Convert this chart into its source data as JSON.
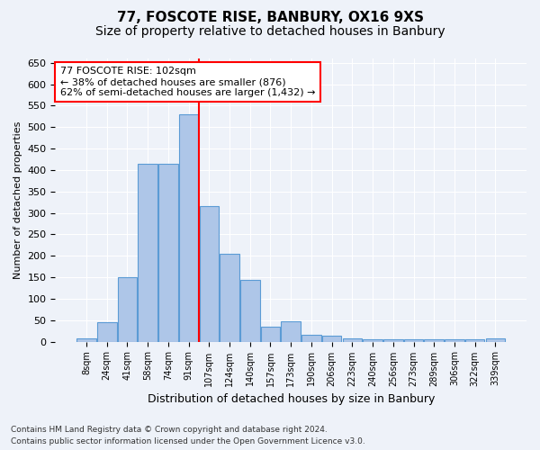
{
  "title1": "77, FOSCOTE RISE, BANBURY, OX16 9XS",
  "title2": "Size of property relative to detached houses in Banbury",
  "xlabel": "Distribution of detached houses by size in Banbury",
  "ylabel": "Number of detached properties",
  "categories": [
    "8sqm",
    "24sqm",
    "41sqm",
    "58sqm",
    "74sqm",
    "91sqm",
    "107sqm",
    "124sqm",
    "140sqm",
    "157sqm",
    "173sqm",
    "190sqm",
    "206sqm",
    "223sqm",
    "240sqm",
    "256sqm",
    "273sqm",
    "289sqm",
    "306sqm",
    "322sqm",
    "339sqm"
  ],
  "values": [
    8,
    45,
    150,
    415,
    415,
    530,
    315,
    204,
    143,
    35,
    48,
    15,
    13,
    8,
    5,
    5,
    5,
    5,
    5,
    5,
    7
  ],
  "bar_color": "#aec6e8",
  "bar_edge_color": "#5b9bd5",
  "vline_x": 5.5,
  "vline_color": "red",
  "annotation_text": "77 FOSCOTE RISE: 102sqm\n← 38% of detached houses are smaller (876)\n62% of semi-detached houses are larger (1,432) →",
  "annotation_box_color": "white",
  "annotation_box_edge": "red",
  "ylim": [
    0,
    660
  ],
  "yticks": [
    0,
    50,
    100,
    150,
    200,
    250,
    300,
    350,
    400,
    450,
    500,
    550,
    600,
    650
  ],
  "footer1": "Contains HM Land Registry data © Crown copyright and database right 2024.",
  "footer2": "Contains public sector information licensed under the Open Government Licence v3.0.",
  "bg_color": "#eef2f9",
  "grid_color": "white",
  "title1_fontsize": 11,
  "title2_fontsize": 10
}
